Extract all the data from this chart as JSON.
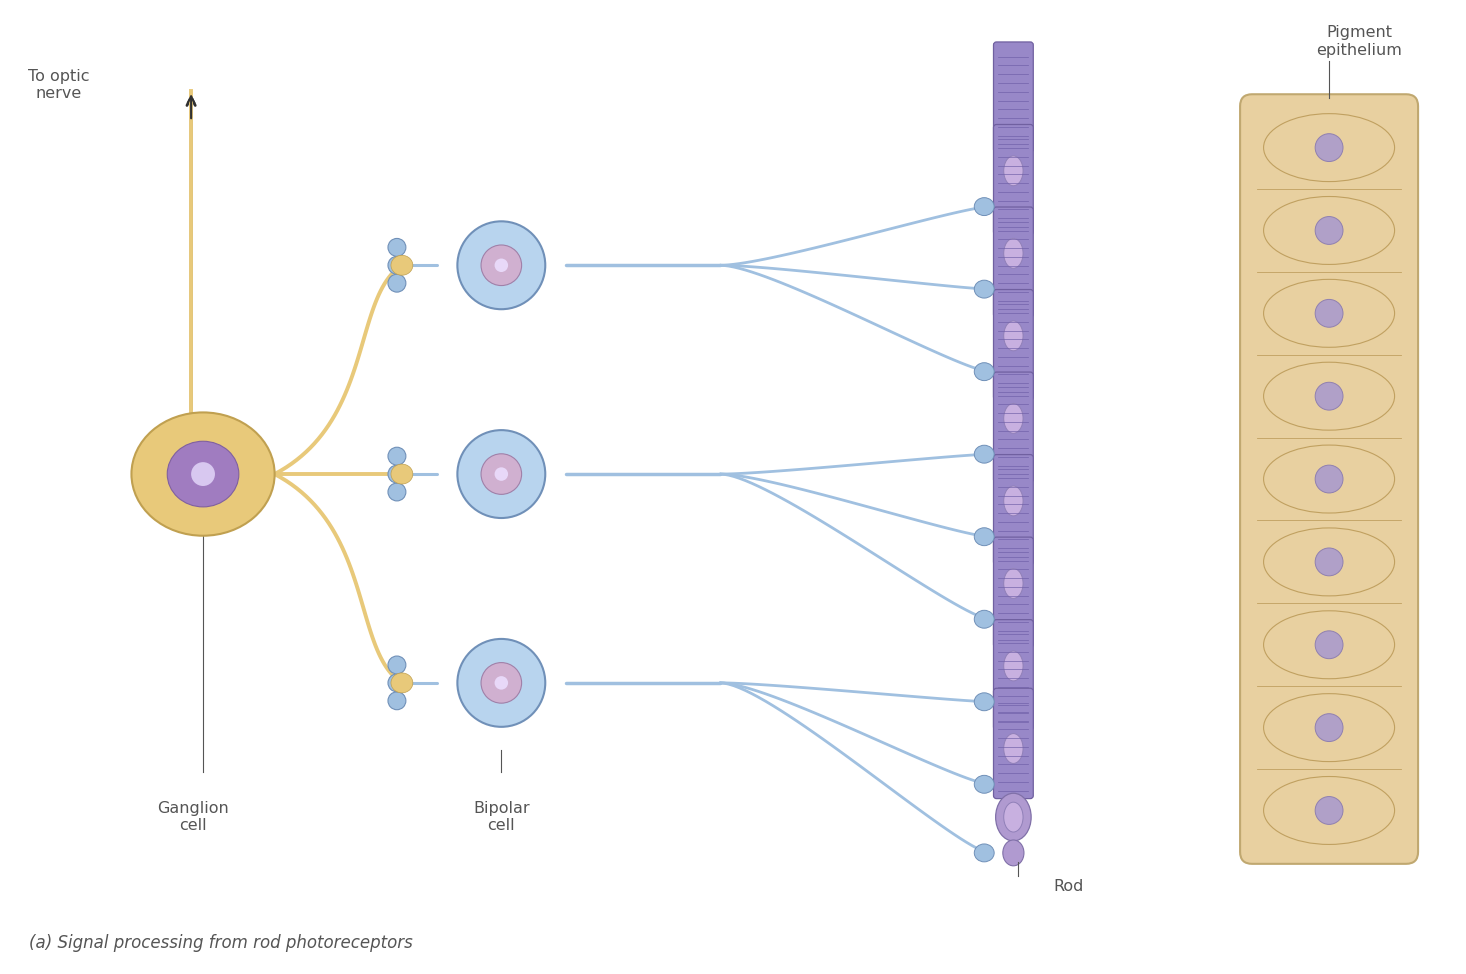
{
  "bg_color": "#ffffff",
  "ganglion_color": "#e8c97a",
  "ganglion_nucleus_color": "#a07cc0",
  "bipolar_color": "#b8d4ee",
  "bipolar_nucleus_color": "#d0b0d0",
  "rod_body_color": "#b09ad0",
  "rod_outer_color": "#9888c8",
  "rod_nucleus_color": "#c8b0e0",
  "rod_outer_stripe_color": "#7060a8",
  "pigment_color": "#e8d0a0",
  "pigment_nucleus_color": "#b0a0c8",
  "connection_color": "#a0c0e0",
  "ganglion_connection_color": "#e8c97a",
  "text_color": "#555555",
  "title": "(a) Signal processing from rod photoreceptors",
  "labels": {
    "optic_nerve": "To optic\nnerve",
    "ganglion": "Ganglion\ncell",
    "bipolar": "Bipolar\ncell",
    "rod": "Rod",
    "pigment": "Pigment\nepithelium"
  },
  "figsize": [
    14.66,
    9.74
  ],
  "dpi": 100
}
